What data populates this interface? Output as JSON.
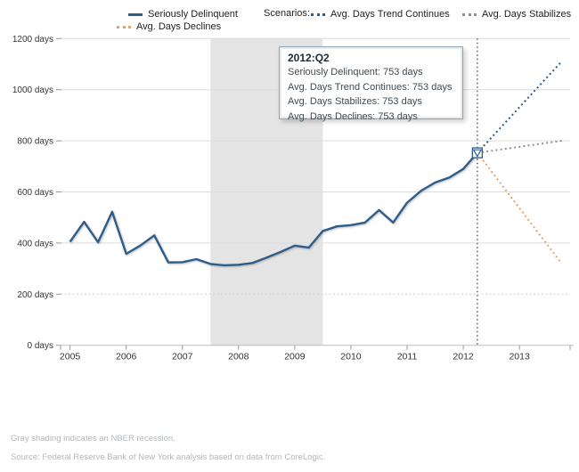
{
  "legend": {
    "seriously_delinquent": "Seriously Delinquent",
    "scenarios": "Scenarios:",
    "trend_continues": "Avg. Days Trend Continues",
    "stabilizes": "Avg. Days Stabilizes",
    "declines": "Avg. Days Declines"
  },
  "tooltip": {
    "title": "2012:Q2",
    "line_delinquent": "Seriously Delinquent: 753 days",
    "line_trend": "Avg. Days Trend Continues: 753 days",
    "line_stabilizes": "Avg. Days Stabilizes: 753 days",
    "line_declines": "Avg. Days Declines: 753 days"
  },
  "notes": {
    "recession": "Gray shading indicates an NBER recession.",
    "source": "Source: Federal Reserve Bank of New York analysis based on data from CoreLogic."
  },
  "colors": {
    "blue": "#2E5D8A",
    "orange": "#E3A567",
    "gray_dotted": "#8F8F8F",
    "recession_band": "#E4E4E4",
    "gridline": "#DCDCDC",
    "gridline_dotted": "#CFCFCF",
    "axis": "#BDBDBD",
    "tick": "#999999",
    "axis_text": "#333333",
    "hover_line": "#5A5A5A"
  },
  "chart_data": {
    "type": "line",
    "title": "",
    "xlabel": "",
    "ylabel": "days",
    "xlim": [
      2004.83,
      2013.92
    ],
    "ylim": [
      0,
      1200
    ],
    "grid": true,
    "gridline_dotted_at": 200,
    "legend_position": "top",
    "x_ticks": [
      2005,
      2006,
      2007,
      2008,
      2009,
      2010,
      2011,
      2012,
      2013
    ],
    "x_tick_labels": [
      "2005",
      "2006",
      "2007",
      "2008",
      "2009",
      "2010",
      "2011",
      "2012",
      "2013"
    ],
    "y_ticks": [
      0,
      200,
      400,
      600,
      800,
      1000,
      1200
    ],
    "y_tick_labels": [
      "0 days",
      "200 days",
      "400 days",
      "600 days",
      "800 days",
      "1000 days",
      "1200 days"
    ],
    "recession_band": {
      "start": 2007.5,
      "end": 2009.5
    },
    "hover": {
      "x": 2012.25,
      "y": 753,
      "label": "2012:Q2"
    },
    "series": [
      {
        "name": "Seriously Delinquent",
        "style": "solid",
        "color": "#2E5D8A",
        "x_start": 2005,
        "x_step": 0.25,
        "values": [
          405,
          483,
          403,
          522,
          358,
          390,
          430,
          324,
          325,
          337,
          318,
          313,
          315,
          322,
          343,
          365,
          390,
          382,
          447,
          465,
          470,
          480,
          529,
          480,
          558,
          605,
          637,
          656,
          690,
          753
        ]
      },
      {
        "name": "Avg. Days Trend Continues",
        "style": "dotted",
        "color": "#2E5D8A",
        "x": [
          2012.25,
          2013.75
        ],
        "values": [
          753,
          1110
        ]
      },
      {
        "name": "Avg. Days Stabilizes",
        "style": "dotted",
        "color": "#8F8F8F",
        "x": [
          2012.25,
          2013.75
        ],
        "values": [
          753,
          800
        ]
      },
      {
        "name": "Avg. Days Declines",
        "style": "dotted",
        "color": "#E3A567",
        "x": [
          2012.25,
          2013.75
        ],
        "values": [
          753,
          320
        ]
      }
    ]
  }
}
